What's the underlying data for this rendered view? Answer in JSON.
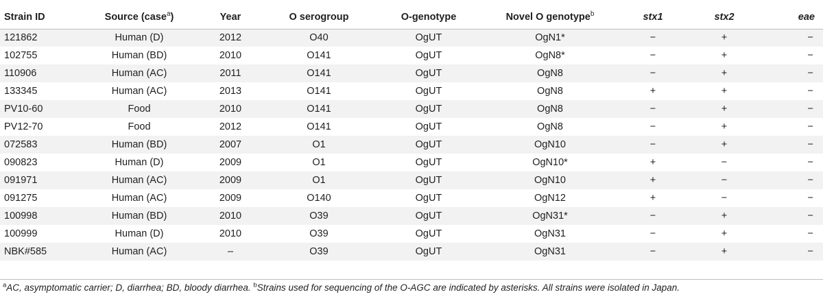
{
  "headers": {
    "strain_id": "Strain ID",
    "source_pre": "Source (case",
    "source_sup": "a",
    "source_post": ")",
    "year": "Year",
    "o_serogroup": "O serogroup",
    "o_genotype": "O-genotype",
    "novel_pre": "Novel O genotype",
    "novel_sup": "b",
    "stx1": "stx1",
    "stx2": "stx2",
    "eae": "eae"
  },
  "rows": [
    {
      "id": "121862",
      "source": "Human (D)",
      "year": "2012",
      "serogroup": "O40",
      "genotype": "OgUT",
      "novel": "OgN1*",
      "stx1": "−",
      "stx2": "+",
      "eae": "−"
    },
    {
      "id": "102755",
      "source": "Human (BD)",
      "year": "2010",
      "serogroup": "O141",
      "genotype": "OgUT",
      "novel": "OgN8*",
      "stx1": "−",
      "stx2": "+",
      "eae": "−"
    },
    {
      "id": "110906",
      "source": "Human (AC)",
      "year": "2011",
      "serogroup": "O141",
      "genotype": "OgUT",
      "novel": "OgN8",
      "stx1": "−",
      "stx2": "+",
      "eae": "−"
    },
    {
      "id": "133345",
      "source": "Human (AC)",
      "year": "2013",
      "serogroup": "O141",
      "genotype": "OgUT",
      "novel": "OgN8",
      "stx1": "+",
      "stx2": "+",
      "eae": "−"
    },
    {
      "id": "PV10-60",
      "source": "Food",
      "year": "2010",
      "serogroup": "O141",
      "genotype": "OgUT",
      "novel": "OgN8",
      "stx1": "−",
      "stx2": "+",
      "eae": "−"
    },
    {
      "id": "PV12-70",
      "source": "Food",
      "year": "2012",
      "serogroup": "O141",
      "genotype": "OgUT",
      "novel": "OgN8",
      "stx1": "−",
      "stx2": "+",
      "eae": "−"
    },
    {
      "id": "072583",
      "source": "Human (BD)",
      "year": "2007",
      "serogroup": "O1",
      "genotype": "OgUT",
      "novel": "OgN10",
      "stx1": "−",
      "stx2": "+",
      "eae": "−"
    },
    {
      "id": "090823",
      "source": "Human (D)",
      "year": "2009",
      "serogroup": "O1",
      "genotype": "OgUT",
      "novel": "OgN10*",
      "stx1": "+",
      "stx2": "−",
      "eae": "−"
    },
    {
      "id": "091971",
      "source": "Human (AC)",
      "year": "2009",
      "serogroup": "O1",
      "genotype": "OgUT",
      "novel": "OgN10",
      "stx1": "+",
      "stx2": "−",
      "eae": "−"
    },
    {
      "id": "091275",
      "source": "Human (AC)",
      "year": "2009",
      "serogroup": "O140",
      "genotype": "OgUT",
      "novel": "OgN12",
      "stx1": "+",
      "stx2": "−",
      "eae": "−"
    },
    {
      "id": "100998",
      "source": "Human (BD)",
      "year": "2010",
      "serogroup": "O39",
      "genotype": "OgUT",
      "novel": "OgN31*",
      "stx1": "−",
      "stx2": "+",
      "eae": "−"
    },
    {
      "id": "100999",
      "source": "Human (D)",
      "year": "2010",
      "serogroup": "O39",
      "genotype": "OgUT",
      "novel": "OgN31",
      "stx1": "−",
      "stx2": "+",
      "eae": "−"
    },
    {
      "id": "NBK#585",
      "source": "Human (AC)",
      "year": "–",
      "serogroup": "O39",
      "genotype": "OgUT",
      "novel": "OgN31",
      "stx1": "−",
      "stx2": "+",
      "eae": "−"
    }
  ],
  "footnote": {
    "a_mark": "a",
    "a_text": "AC, asymptomatic carrier; D, diarrhea; BD, bloody diarrhea. ",
    "b_mark": "b",
    "b_text": "Strains used for sequencing of the O-AGC are indicated by asterisks. All strains were isolated in Japan."
  },
  "colors": {
    "stripe": "#f2f2f2",
    "rule": "#bdbdbd",
    "text": "#1f1f1f"
  }
}
